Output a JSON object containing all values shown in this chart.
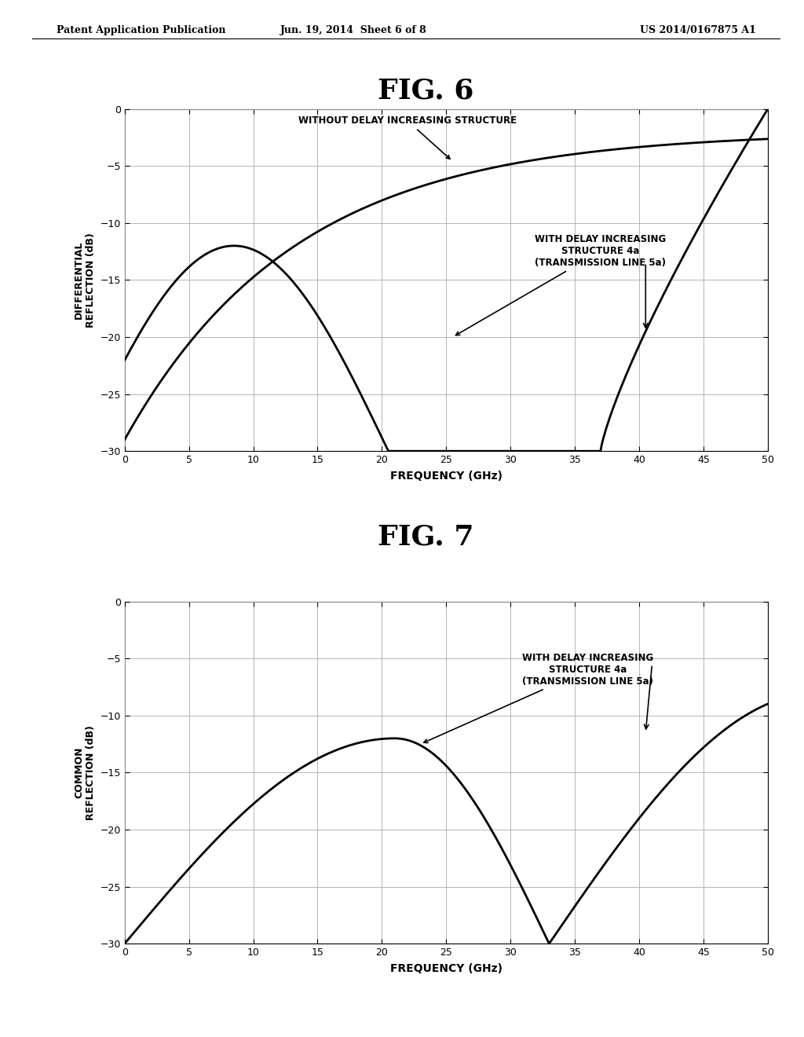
{
  "fig6_title": "FIG. 6",
  "fig7_title": "FIG. 7",
  "header_left": "Patent Application Publication",
  "header_center": "Jun. 19, 2014  Sheet 6 of 8",
  "header_right": "US 2014/0167875 A1",
  "fig6_ylabel": "DIFFERENTIAL\nREFLECTION (dB)",
  "fig7_ylabel": "COMMON\nREFLECTION (dB)",
  "xlabel": "FREQUENCY (GHz)",
  "xlim": [
    0,
    50
  ],
  "ylim": [
    -30,
    0
  ],
  "xticks": [
    0,
    5,
    10,
    15,
    20,
    25,
    30,
    35,
    40,
    45,
    50
  ],
  "yticks": [
    0,
    -5,
    -10,
    -15,
    -20,
    -25,
    -30
  ],
  "fig6_ann1_text": "WITHOUT DELAY INCREASING STRUCTURE",
  "fig6_ann2_text": "WITH DELAY INCREASING\nSTRUCTURE 4a\n(TRANSMISSION LINE 5a)",
  "fig7_ann_text": "WITH DELAY INCREASING\nSTRUCTURE 4a\n(TRANSMISSION LINE 5a)",
  "bg_color": "#ffffff",
  "line_color": "#000000",
  "grid_color": "#aaaaaa",
  "header_fontsize": 9,
  "title_fontsize": 26,
  "tick_fontsize": 9,
  "axis_label_fontsize": 10,
  "ann_fontsize": 8.5
}
